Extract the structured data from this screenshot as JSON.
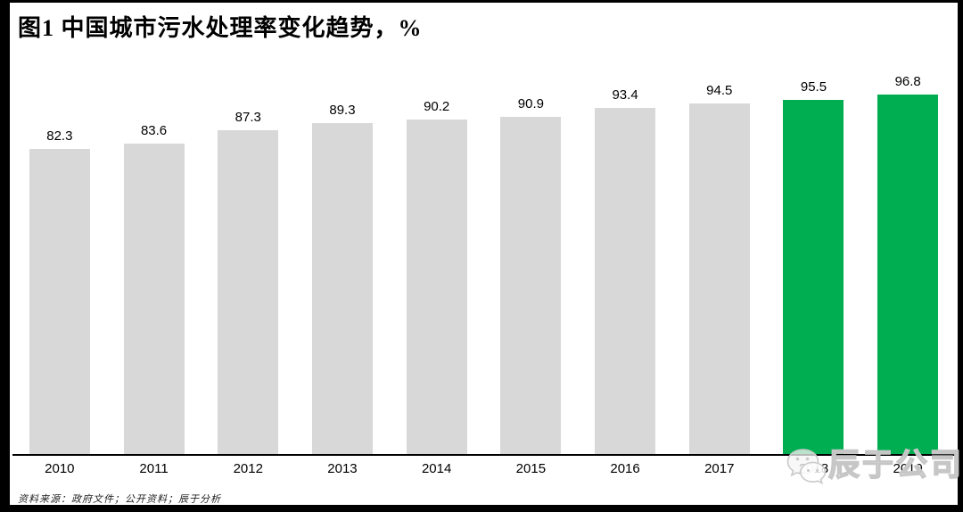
{
  "title": "图1 中国城市污水处理率变化趋势，%",
  "source_note": "资料来源：政府文件；公开资料；辰于分析",
  "watermark": {
    "text": "辰于公司",
    "icon": "wechat-icon"
  },
  "colors": {
    "bar_default": "#D8D8D8",
    "bar_highlight": "#00AE52",
    "frame": "#000000",
    "axis": "#000000",
    "watermark_gray": "#C6C6C6"
  },
  "chart_data": {
    "type": "bar",
    "title": "图1 中国城市污水处理率变化趋势，%",
    "categories": [
      "2010",
      "2011",
      "2012",
      "2013",
      "2014",
      "2015",
      "2016",
      "2017",
      "2018",
      "2019"
    ],
    "values": [
      82.3,
      83.6,
      87.3,
      89.3,
      90.2,
      90.9,
      93.4,
      94.5,
      95.5,
      96.8
    ],
    "value_labels": [
      "82.3",
      "83.6",
      "87.3",
      "89.3",
      "90.2",
      "90.9",
      "93.4",
      "94.5",
      "95.5",
      "96.8"
    ],
    "highlighted_categories": [
      "2018",
      "2019"
    ],
    "xlabel": "",
    "ylabel": "",
    "ylim": [
      0,
      100
    ],
    "grid": false,
    "legend": false,
    "y_axis_visible": false,
    "data_labels_visible": true
  }
}
